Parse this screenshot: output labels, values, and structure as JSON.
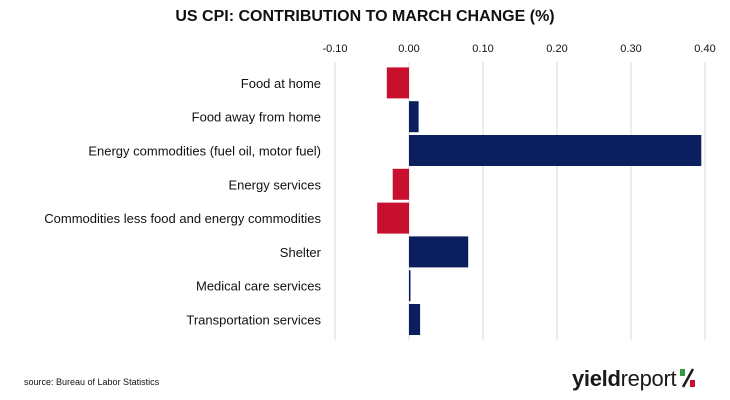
{
  "chart_data": {
    "type": "bar",
    "orientation": "horizontal",
    "title": "US CPI: CONTRIBUTION TO MARCH CHANGE (%)",
    "categories": [
      "Food at home",
      "Food away from home",
      "Energy commodities (fuel oil, motor fuel)",
      "Energy services",
      "Commodities less food and energy commodities",
      "Shelter",
      "Medical care services",
      "Transportation services"
    ],
    "values": [
      -0.03,
      0.013,
      0.395,
      -0.022,
      -0.043,
      0.08,
      0.002,
      0.015
    ],
    "xlim": [
      -0.1,
      0.4
    ],
    "ticks": [
      -0.1,
      0.0,
      0.1,
      0.2,
      0.3,
      0.4
    ],
    "tick_labels": [
      "-0.10",
      "0.00",
      "0.10",
      "0.20",
      "0.30",
      "0.40"
    ],
    "axis_position": "top",
    "grid": true,
    "colors": {
      "positive": "#0b1f5e",
      "negative": "#c8102e",
      "grid": "#d9d9d9"
    }
  },
  "source": "source: Bureau of Labor Statistics",
  "logo": {
    "part1": "yield",
    "part2": "report",
    "part3": "%"
  }
}
